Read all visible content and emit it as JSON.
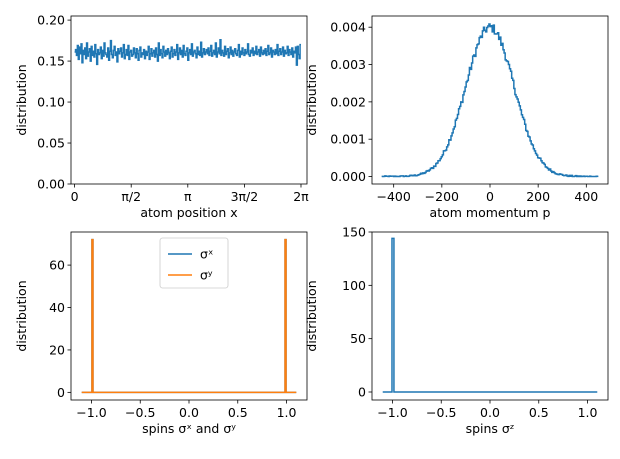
{
  "colors": {
    "blue": "#1f77b4",
    "orange": "#ff7f0e",
    "axis": "#000000"
  },
  "chart_data": [
    {
      "type": "line",
      "step": true,
      "xlabel": "atom position x",
      "ylabel": "distribution",
      "xlim": [
        -0.1,
        6.45
      ],
      "ylim": [
        0.0,
        0.205
      ],
      "xticks": [
        0,
        1.5708,
        3.1416,
        4.7124,
        6.2832
      ],
      "xtick_labels": [
        "0",
        "π/2",
        "π",
        "3π/2",
        "2π"
      ],
      "yticks": [
        0.0,
        0.05,
        0.1,
        0.15,
        0.2
      ],
      "ytick_labels": [
        "0.00",
        "0.05",
        "0.10",
        "0.15",
        "0.20"
      ],
      "series": [
        {
          "color": "#1f77b4",
          "x_range": [
            0.0,
            6.2832
          ],
          "values": [
            0.161,
            0.164,
            0.157,
            0.169,
            0.152,
            0.167,
            0.159,
            0.171,
            0.148,
            0.163,
            0.158,
            0.166,
            0.153,
            0.172,
            0.156,
            0.161,
            0.165,
            0.15,
            0.168,
            0.157,
            0.162,
            0.155,
            0.17,
            0.159,
            0.146,
            0.164,
            0.158,
            0.16,
            0.167,
            0.153,
            0.163,
            0.156,
            0.172,
            0.16,
            0.158,
            0.155,
            0.166,
            0.151,
            0.162,
            0.175,
            0.158,
            0.154,
            0.163,
            0.168,
            0.157,
            0.161,
            0.149,
            0.165,
            0.159,
            0.162,
            0.166,
            0.155,
            0.16,
            0.17,
            0.153,
            0.158,
            0.164,
            0.157,
            0.169,
            0.152,
            0.161,
            0.163,
            0.156,
            0.158,
            0.166,
            0.16,
            0.154,
            0.165,
            0.159,
            0.151,
            0.163,
            0.167,
            0.155,
            0.16,
            0.158,
            0.164,
            0.153,
            0.162,
            0.157,
            0.161,
            0.168,
            0.152,
            0.159,
            0.165,
            0.156,
            0.16,
            0.163,
            0.155,
            0.166,
            0.158,
            0.15,
            0.172,
            0.157,
            0.164,
            0.159,
            0.154,
            0.168,
            0.161,
            0.156,
            0.163,
            0.158,
            0.165,
            0.16,
            0.153,
            0.162,
            0.167,
            0.155,
            0.159,
            0.164,
            0.157,
            0.161,
            0.17,
            0.152,
            0.16,
            0.166,
            0.158,
            0.163,
            0.155,
            0.169,
            0.159,
            0.157,
            0.162,
            0.166,
            0.151,
            0.16,
            0.164,
            0.158,
            0.171,
            0.156,
            0.161,
            0.163,
            0.159,
            0.154,
            0.167,
            0.158,
            0.162,
            0.157,
            0.173,
            0.155,
            0.16,
            0.165,
            0.158,
            0.161,
            0.164,
            0.159,
            0.166,
            0.157,
            0.162,
            0.169,
            0.156,
            0.16,
            0.163,
            0.158,
            0.172,
            0.155,
            0.161,
            0.166,
            0.159,
            0.176,
            0.157,
            0.163,
            0.16,
            0.156,
            0.168,
            0.158,
            0.162,
            0.165,
            0.154,
            0.16,
            0.167,
            0.158,
            0.163,
            0.156,
            0.161,
            0.165,
            0.159,
            0.157,
            0.163,
            0.17,
            0.155,
            0.162,
            0.158,
            0.166,
            0.16,
            0.157,
            0.164,
            0.159,
            0.161,
            0.171,
            0.158,
            0.156,
            0.163,
            0.16,
            0.166,
            0.157,
            0.162,
            0.159,
            0.168,
            0.158,
            0.161,
            0.164,
            0.156,
            0.167,
            0.16,
            0.158,
            0.163,
            0.159,
            0.165,
            0.157,
            0.162,
            0.169,
            0.158,
            0.16,
            0.166,
            0.155,
            0.163,
            0.161,
            0.158,
            0.164,
            0.159,
            0.17,
            0.157,
            0.162,
            0.165,
            0.158,
            0.161,
            0.167,
            0.156,
            0.163,
            0.159,
            0.16,
            0.168,
            0.157,
            0.164,
            0.161,
            0.158,
            0.166,
            0.155,
            0.162,
            0.16,
            0.167,
            0.145,
            0.168,
            0.158,
            0.153,
            0.17
          ]
        }
      ]
    },
    {
      "type": "line",
      "step": true,
      "xlabel": "atom momentum p",
      "ylabel": "distribution",
      "xlim": [
        -490,
        490
      ],
      "ylim": [
        -0.0002,
        0.0043
      ],
      "xticks": [
        -400,
        -200,
        0,
        200,
        400
      ],
      "xtick_labels": [
        "−400",
        "−200",
        "0",
        "200",
        "400"
      ],
      "yticks": [
        0.0,
        0.001,
        0.002,
        0.003,
        0.004
      ],
      "ytick_labels": [
        "0.000",
        "0.001",
        "0.002",
        "0.003",
        "0.004"
      ],
      "series": [
        {
          "color": "#1f77b4",
          "x_range": [
            -450,
            450
          ],
          "gaussian": {
            "amplitude": 0.004,
            "center": 0,
            "sigma": 100
          },
          "noise_amplitude": 0.00012
        }
      ]
    },
    {
      "type": "line",
      "xlabel": "spins σˣ and σʸ",
      "ylabel": "distribution",
      "xlim": [
        -1.21,
        1.21
      ],
      "ylim": [
        -3.6,
        75.6
      ],
      "xticks": [
        -1.0,
        -0.5,
        0.0,
        0.5,
        1.0
      ],
      "xtick_labels": [
        "−1.0",
        "−0.5",
        "0.0",
        "0.5",
        "1.0"
      ],
      "yticks": [
        0,
        20,
        40,
        60
      ],
      "ytick_labels": [
        "0",
        "20",
        "40",
        "60"
      ],
      "legend_position": "top-center",
      "series": [
        {
          "name": "σˣ",
          "color": "#1f77b4",
          "x": [
            -1.1,
            -0.995,
            -0.995,
            -0.985,
            -0.985,
            0.985,
            0.985,
            0.995,
            0.995,
            1.1
          ],
          "y": [
            0,
            0,
            72,
            72,
            0,
            0,
            72,
            72,
            0,
            0
          ]
        },
        {
          "name": "σʸ",
          "color": "#ff7f0e",
          "x": [
            -1.1,
            -0.995,
            -0.995,
            -0.985,
            -0.985,
            0.985,
            0.985,
            0.995,
            0.995,
            1.1
          ],
          "y": [
            0,
            0,
            72,
            72,
            0,
            0,
            72,
            72,
            0,
            0
          ]
        }
      ]
    },
    {
      "type": "line",
      "xlabel": "spins σᶻ",
      "ylabel": "distribution",
      "xlim": [
        -1.21,
        1.21
      ],
      "ylim": [
        -7.5,
        150
      ],
      "xticks": [
        -1.0,
        -0.5,
        0.0,
        0.5,
        1.0
      ],
      "xtick_labels": [
        "−1.0",
        "−0.5",
        "0.0",
        "0.5",
        "1.0"
      ],
      "yticks": [
        0,
        50,
        100,
        150
      ],
      "ytick_labels": [
        "0",
        "50",
        "100",
        "150"
      ],
      "series": [
        {
          "color": "#1f77b4",
          "x": [
            -1.1,
            -1.005,
            -1.005,
            -0.985,
            -0.985,
            1.1
          ],
          "y": [
            0,
            0,
            144,
            144,
            0,
            0
          ]
        }
      ]
    }
  ]
}
